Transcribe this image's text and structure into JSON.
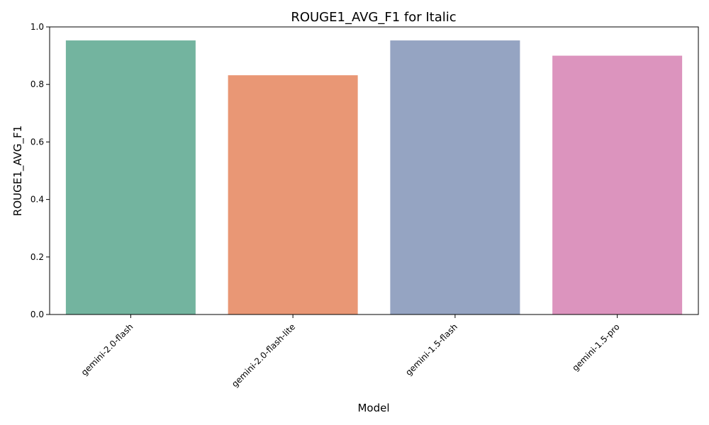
{
  "chart_data": {
    "type": "bar",
    "title": "ROUGE1_AVG_F1 for Italic",
    "xlabel": "Model",
    "ylabel": "ROUGE1_AVG_F1",
    "categories": [
      "gemini-2.0-flash",
      "gemini-2.0-flash-lite",
      "gemini-1.5-flash",
      "gemini-1.5-pro"
    ],
    "values": [
      0.953,
      0.832,
      0.953,
      0.9
    ],
    "colors": [
      "#73b49f",
      "#e99775",
      "#95a4c2",
      "#dc94be"
    ],
    "ylim": [
      0,
      1.0
    ],
    "yticks": [
      "0.0",
      "0.2",
      "0.4",
      "0.6",
      "0.8",
      "1.0"
    ],
    "grid": false,
    "legend": "none"
  }
}
